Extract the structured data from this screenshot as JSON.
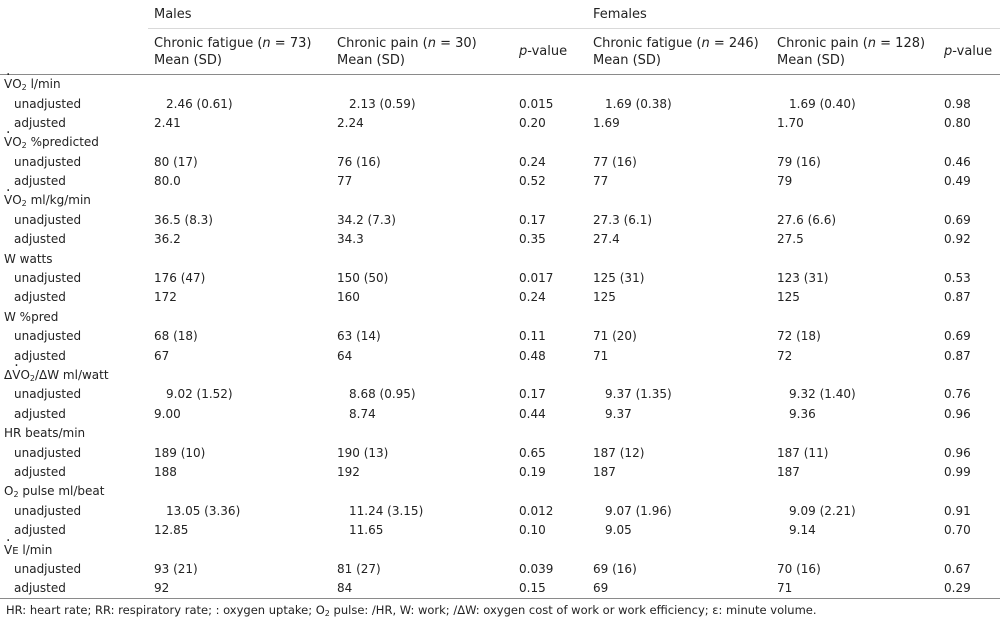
{
  "header": {
    "groups": {
      "males": "Males",
      "females": "Females"
    },
    "columns": {
      "cf_male_a": "Chronic fatigue (",
      "cf_male_n": "n",
      "cf_male_b": " = 73)",
      "cp_male_a": "Chronic pain (",
      "cp_male_n": "n",
      "cp_male_b": " = 30)",
      "p_male_i": "p",
      "p_male_b": "-value",
      "cf_female_a": "Chronic fatigue (",
      "cf_female_n": "n",
      "cf_female_b": " = 246)",
      "cp_female_a": "Chronic pain (",
      "cp_female_n": "n",
      "cp_female_b": " = 128)",
      "p_female_i": "p",
      "p_female_b": "-value",
      "mean_sd": "Mean (SD)"
    }
  },
  "rows": {
    "vo2_lmin": {
      "v": "V",
      "o": "O",
      "two": "2",
      "unit": " l/min"
    },
    "vo2_lmin_u": {
      "label": "unadjusted",
      "c1": "2.46 (0.61)",
      "c2": "2.13 (0.59)",
      "p1": "0.015",
      "c3": "1.69 (0.38)",
      "c4": "1.69 (0.40)",
      "p2": "0.98"
    },
    "vo2_lmin_a": {
      "label": "adjusted",
      "c1": "2.41",
      "c2": "2.24",
      "p1": "0.20",
      "c3": "1.69",
      "c4": "1.70",
      "p2": "0.80"
    },
    "vo2_pct": {
      "v": "V",
      "o": "O",
      "two": "2",
      "unit": " %predicted"
    },
    "vo2_pct_u": {
      "label": "unadjusted",
      "c1": "80 (17)",
      "c2": "76 (16)",
      "p1": "0.24",
      "c3": "77 (16)",
      "c4": "79 (16)",
      "p2": "0.46"
    },
    "vo2_pct_a": {
      "label": "adjusted",
      "c1": "80.0",
      "c2": "77",
      "p1": "0.52",
      "c3": "77",
      "c4": "79",
      "p2": "0.49"
    },
    "vo2_kg": {
      "v": "V",
      "o": "O",
      "two": "2",
      "unit": " ml/kg/min"
    },
    "vo2_kg_u": {
      "label": "unadjusted",
      "c1": "36.5 (8.3)",
      "c2": "34.2 (7.3)",
      "p1": "0.17",
      "c3": "27.3 (6.1)",
      "c4": "27.6 (6.6)",
      "p2": "0.69"
    },
    "vo2_kg_a": {
      "label": "adjusted",
      "c1": "36.2",
      "c2": "34.3",
      "p1": "0.35",
      "c3": "27.4",
      "c4": "27.5",
      "p2": "0.92"
    },
    "w_watts": {
      "label": "W watts"
    },
    "w_watts_u": {
      "label": "unadjusted",
      "c1": "176 (47)",
      "c2": "150 (50)",
      "p1": "0.017",
      "c3": "125 (31)",
      "c4": "123 (31)",
      "p2": "0.53"
    },
    "w_watts_a": {
      "label": "adjusted",
      "c1": "172",
      "c2": "160",
      "p1": "0.24",
      "c3": "125",
      "c4": "125",
      "p2": "0.87"
    },
    "w_pct": {
      "label": "W %pred"
    },
    "w_pct_u": {
      "label": "unadjusted",
      "c1": "68 (18)",
      "c2": "63 (14)",
      "p1": "0.11",
      "c3": "71 (20)",
      "c4": "72 (18)",
      "p2": "0.69"
    },
    "w_pct_a": {
      "label": "adjusted",
      "c1": "67",
      "c2": "64",
      "p1": "0.48",
      "c3": "71",
      "c4": "72",
      "p2": "0.87"
    },
    "dvo2": {
      "delta1": "Δ",
      "v": "V",
      "o": "O",
      "two": "2",
      "rest": "/ΔW ml/watt"
    },
    "dvo2_u": {
      "label": "unadjusted",
      "c1": "9.02 (1.52)",
      "c2": "8.68 (0.95)",
      "p1": "0.17",
      "c3": "9.37 (1.35)",
      "c4": "9.32 (1.40)",
      "p2": "0.76"
    },
    "dvo2_a": {
      "label": "adjusted",
      "c1": "9.00",
      "c2": "8.74",
      "p1": "0.44",
      "c3": "9.37",
      "c4": "9.36",
      "p2": "0.96"
    },
    "hr": {
      "label": "HR beats/min"
    },
    "hr_u": {
      "label": "unadjusted",
      "c1": "189 (10)",
      "c2": "190 (13)",
      "p1": "0.65",
      "c3": "187 (12)",
      "c4": "187 (11)",
      "p2": "0.96"
    },
    "hr_a": {
      "label": "adjusted",
      "c1": "188",
      "c2": "192",
      "p1": "0.19",
      "c3": "187",
      "c4": "187",
      "p2": "0.99"
    },
    "o2p": {
      "o": "O",
      "two": "2",
      "unit": " pulse ml/beat"
    },
    "o2p_u": {
      "label": "unadjusted",
      "c1": "13.05 (3.36)",
      "c2": "11.24 (3.15)",
      "p1": "0.012",
      "c3": "9.07 (1.96)",
      "c4": "9.09 (2.21)",
      "p2": "0.91"
    },
    "o2p_a": {
      "label": "adjusted",
      "c1": "12.85",
      "c2": "11.65",
      "p1": "0.10",
      "c3": "9.05",
      "c4": "9.14",
      "p2": "0.70"
    },
    "ve": {
      "v": "V",
      "e": "E",
      "unit": " l/min"
    },
    "ve_u": {
      "label": "unadjusted",
      "c1": "93 (21)",
      "c2": "81 (27)",
      "p1": "0.039",
      "c3": "69 (16)",
      "c4": "70 (16)",
      "p2": "0.67"
    },
    "ve_a": {
      "label": "adjusted",
      "c1": "92",
      "c2": "84",
      "p1": "0.15",
      "c3": "69",
      "c4": "71",
      "p2": "0.29"
    }
  },
  "footnote": {
    "a": "HR: heart rate; RR: respiratory rate; : oxygen uptake; O",
    "two": "2",
    "b": " pulse: /HR, W: work; /ΔW: oxygen cost of work or work efficiency; ",
    "eps": "ε",
    "c": ": minute volume."
  }
}
